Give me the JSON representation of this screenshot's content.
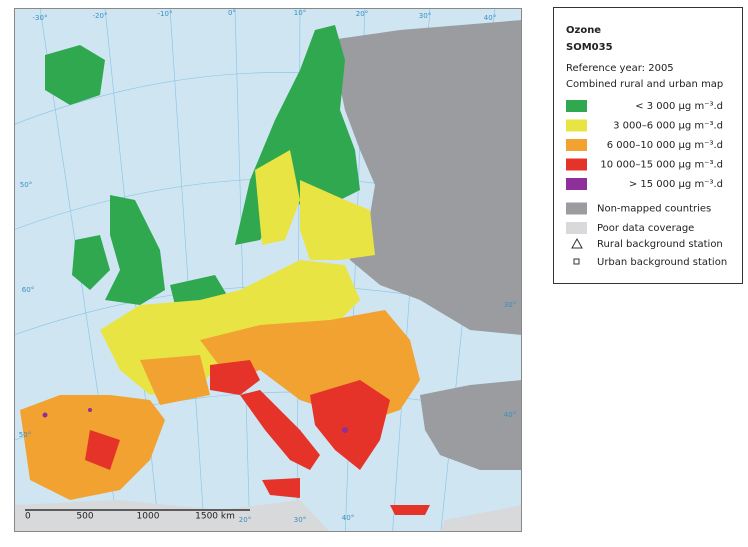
{
  "legend": {
    "title": "Ozone",
    "code": "SOM035",
    "reference_year": "Reference year: 2005",
    "description": "Combined rural and urban map",
    "items": [
      {
        "label": "< 3 000 µg m⁻³.d",
        "color": "#2fa84f"
      },
      {
        "label": "3 000–6 000 µg m⁻³.d",
        "color": "#e8e443"
      },
      {
        "label": "6 000–10 000 µg m⁻³.d",
        "color": "#f2a230"
      },
      {
        "label": "10 000–15 000 µg m⁻³.d",
        "color": "#e63329"
      },
      {
        "label": "> 15 000 µg m⁻³.d",
        "color": "#8e2f9a"
      },
      {
        "label": "Non-mapped countries",
        "color": "#9a9ca0"
      },
      {
        "label": "Poor data coverage",
        "color": "#d7d9db"
      }
    ],
    "stations": [
      {
        "label": "Rural background station"
      },
      {
        "label": "Urban background station"
      }
    ]
  },
  "map": {
    "graticule_labels": [
      "-30°",
      "-20°",
      "-10°",
      "0°",
      "10°",
      "20°",
      "30°",
      "40°",
      "50°",
      "60°",
      "50°",
      "40°",
      "30°",
      "40°",
      "30°",
      "20°"
    ],
    "scale_bar": [
      "0",
      "500",
      "1000",
      "1500 km"
    ]
  }
}
